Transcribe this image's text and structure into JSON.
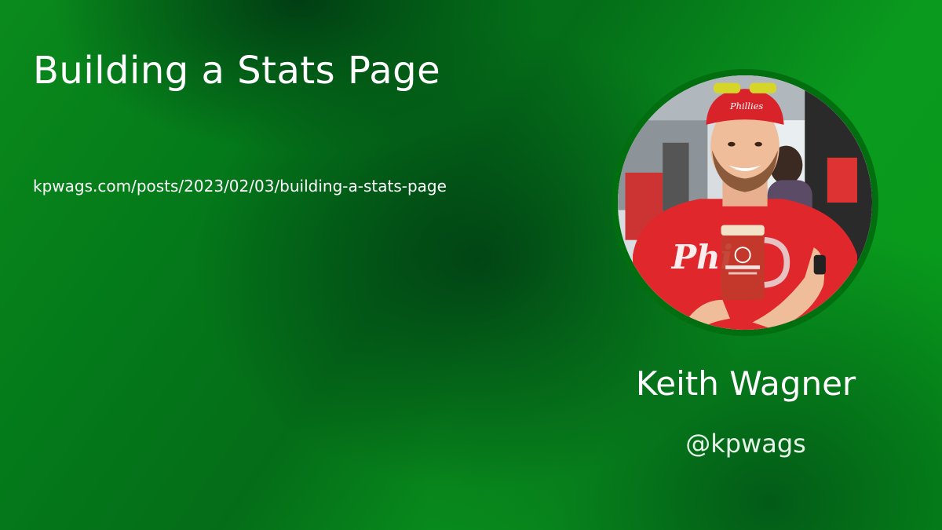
{
  "post": {
    "title": "Building a Stats Page",
    "url": "kpwags.com/posts/2023/02/03/building-a-stats-page"
  },
  "author": {
    "name": "Keith Wagner",
    "handle": "@kpwags",
    "avatar_icon": "author-photo"
  },
  "colors": {
    "background_green": "#0a8a1c",
    "avatar_ring": "#016e10",
    "text": "#ffffff"
  }
}
